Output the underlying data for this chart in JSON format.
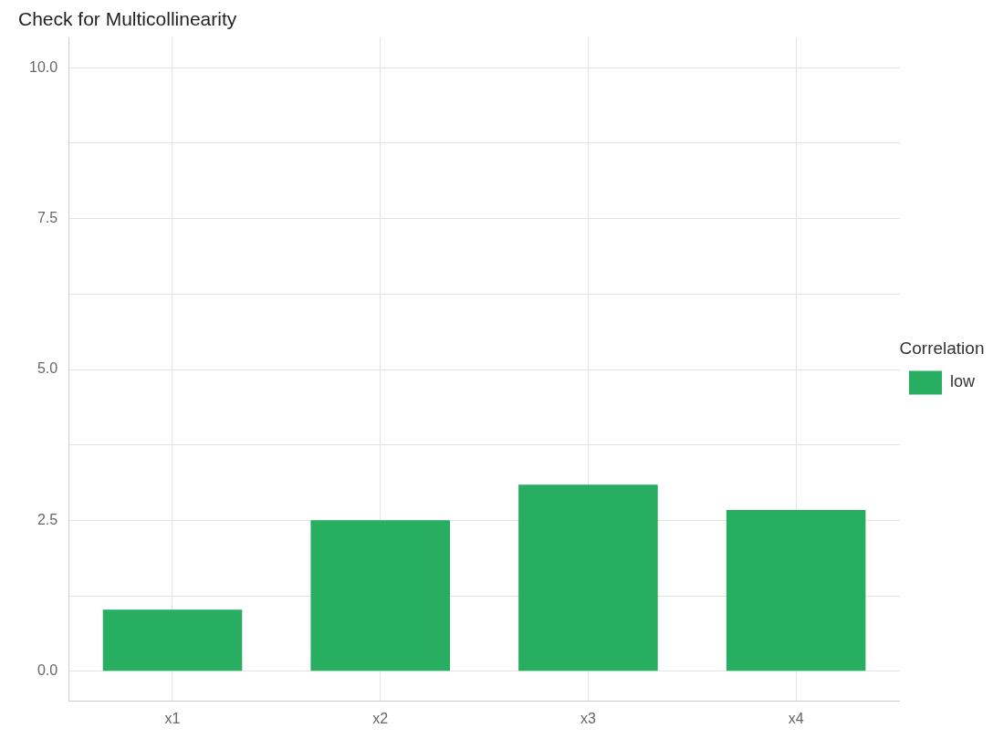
{
  "chart_data": {
    "type": "bar",
    "title": "Check for Multicollinearity",
    "legend_title": "Correlation",
    "categories": [
      "x1",
      "x2",
      "x3",
      "x4"
    ],
    "series": [
      {
        "name": "low",
        "color": "#27ae60",
        "values": [
          1.02,
          2.5,
          3.09,
          2.67
        ]
      }
    ],
    "ylim": [
      -0.5,
      10.5
    ],
    "yticks": [
      {
        "value": 0,
        "label": "0.0"
      },
      {
        "value": 1.25,
        "label": null
      },
      {
        "value": 2.5,
        "label": "2.5"
      },
      {
        "value": 3.75,
        "label": null
      },
      {
        "value": 5,
        "label": "5.0"
      },
      {
        "value": 6.25,
        "label": null
      },
      {
        "value": 7.5,
        "label": "7.5"
      },
      {
        "value": 8.75,
        "label": null
      },
      {
        "value": 10,
        "label": "10.0"
      }
    ],
    "grid": true,
    "legend": "right"
  }
}
